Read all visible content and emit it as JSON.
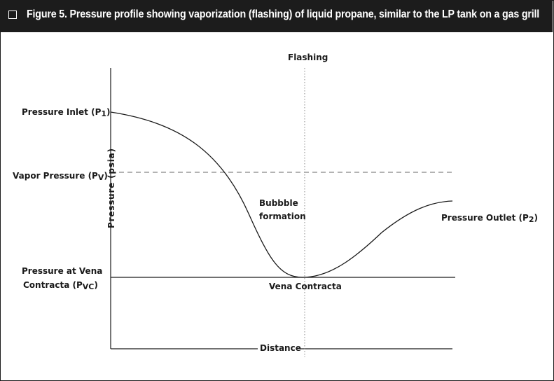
{
  "title": "Figure 5. Pressure profile showing vaporization (flashing) of liquid propane, similar to the LP tank on a gas grill",
  "labels": {
    "flashing": "Flashing",
    "pressure_inlet": "Pressure Inlet (P",
    "pressure_inlet_sub": "1",
    "pressure_inlet_close": ")",
    "vapor_pressure": "Vapor Pressure  (P",
    "vapor_pressure_sub": "V",
    "vapor_pressure_close": ")",
    "y_axis": "Pressure (psia)",
    "bubble_line1": "Bubbble",
    "bubble_line2": "formation",
    "pressure_outlet": "Pressure Outlet (P",
    "pressure_outlet_sub": "2",
    "pressure_outlet_close": ")",
    "vena_line1": "Pressure at Vena",
    "vena_line2": "Contracta (P",
    "vena_sub": "VC",
    "vena_close": ")",
    "vena_contracta": "Vena Contracta",
    "x_axis": "Distance"
  },
  "colors": {
    "header_bg": "#1c1c1c",
    "header_text": "#ffffff",
    "line": "#1a1a1a",
    "dashed": "#9a9a9a"
  }
}
